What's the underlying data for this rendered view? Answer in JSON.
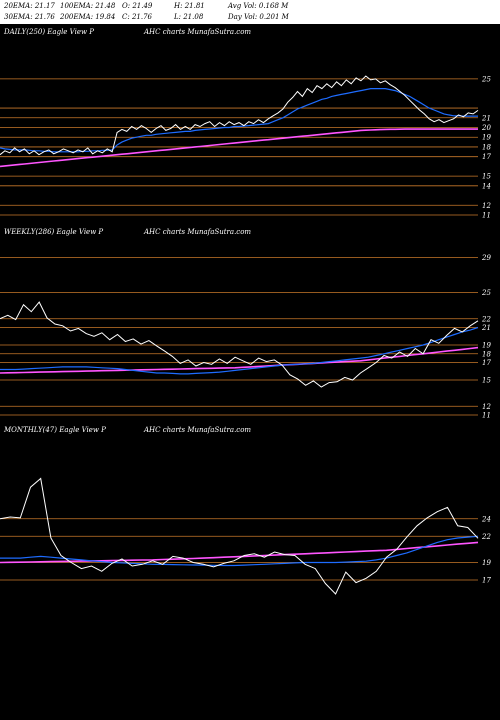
{
  "header": {
    "row1": [
      "20EMA: 21.17",
      "100EMA: 21.48",
      "O: 21.49",
      "H: 21.81",
      "Avg Vol: 0.168  M"
    ],
    "row2": [
      "30EMA: 21.76",
      "200EMA: 19.84",
      "C: 21.76",
      "L: 21.08",
      "Day Vol: 0.201  M"
    ]
  },
  "panels": [
    {
      "title": "DAILY(250) Eagle   View   P",
      "site": "AHC charts MunafaSutra.com"
    },
    {
      "title": "WEEKLY(286) Eagle   View   P",
      "site": "AHC charts MunafaSutra.com"
    },
    {
      "title": "MONTHLY(47) Eagle   View   P",
      "site": "AHC charts MunafaSutra.com"
    }
  ],
  "colors": {
    "price": "#ffffff",
    "ema_fast": "#1e6cff",
    "ema_slow": "#ff55ff",
    "level": "#c8782a",
    "emas_other": "#d0a070"
  },
  "chart_data": [
    {
      "type": "line",
      "ylim": [
        11,
        29
      ],
      "y_ticks": [
        "25",
        "21",
        "20",
        "19",
        "18",
        "17",
        "15",
        "14",
        "12",
        "11"
      ],
      "level_lines": [
        25,
        22,
        21,
        20,
        19,
        18,
        17,
        15,
        14,
        12,
        11
      ],
      "series": [
        {
          "values": [
            17.2,
            17.6,
            17.4,
            17.9,
            17.5,
            17.8,
            17.3,
            17.6,
            17.2,
            17.5,
            17.7,
            17.3,
            17.5,
            17.8,
            17.6,
            17.4,
            17.7,
            17.5,
            17.9,
            17.3,
            17.6,
            17.4,
            17.8,
            17.5,
            19.5,
            19.8,
            19.6,
            20.1,
            19.8,
            20.2,
            19.9,
            19.5,
            19.9,
            20.2,
            19.7,
            19.9,
            20.3,
            19.8,
            20.1,
            19.8,
            20.3,
            20.1,
            20.4,
            20.6,
            20.1,
            20.5,
            20.2,
            20.6,
            20.3,
            20.5,
            20.2,
            20.6,
            20.4,
            20.8,
            20.5,
            20.9,
            21.2,
            21.5,
            21.9,
            22.6,
            23.1,
            23.7,
            23.2,
            24.0,
            23.6,
            24.3,
            24.0,
            24.5,
            24.1,
            24.7,
            24.3,
            24.9,
            24.5,
            25.1,
            24.8,
            25.3,
            24.9,
            25.0,
            24.6,
            24.8,
            24.4,
            24.1,
            23.7,
            23.3,
            22.8,
            22.3,
            21.8,
            21.4,
            20.9,
            20.6,
            20.8,
            20.5,
            20.7,
            20.9,
            21.3,
            21.1,
            21.5,
            21.4,
            21.76
          ]
        },
        {
          "values": [
            17.9,
            17.8,
            17.75,
            17.7,
            17.7,
            17.7,
            17.65,
            17.6,
            17.6,
            17.55,
            17.55,
            17.5,
            17.5,
            17.5,
            17.5,
            17.5,
            17.5,
            17.55,
            17.55,
            17.6,
            17.6,
            17.65,
            17.65,
            17.7,
            18.2,
            18.5,
            18.7,
            18.9,
            19.0,
            19.1,
            19.2,
            19.2,
            19.3,
            19.35,
            19.4,
            19.45,
            19.5,
            19.55,
            19.6,
            19.6,
            19.7,
            19.75,
            19.8,
            19.85,
            19.9,
            19.95,
            20.0,
            20.0,
            20.1,
            20.1,
            20.15,
            20.2,
            20.25,
            20.3,
            20.35,
            20.4,
            20.6,
            20.8,
            21.0,
            21.3,
            21.6,
            21.9,
            22.1,
            22.3,
            22.5,
            22.7,
            22.9,
            23.0,
            23.2,
            23.3,
            23.4,
            23.5,
            23.6,
            23.7,
            23.8,
            23.9,
            24.0,
            24.0,
            24.0,
            24.0,
            23.9,
            23.8,
            23.6,
            23.4,
            23.2,
            22.9,
            22.6,
            22.3,
            22.0,
            21.8,
            21.6,
            21.4,
            21.3,
            21.2,
            21.2,
            21.17,
            21.17,
            21.17,
            21.17
          ]
        },
        {
          "values": [
            16.0,
            16.05,
            16.1,
            16.15,
            16.2,
            16.25,
            16.3,
            16.35,
            16.4,
            16.45,
            16.5,
            16.55,
            16.6,
            16.65,
            16.7,
            16.75,
            16.8,
            16.85,
            16.9,
            16.95,
            17.0,
            17.05,
            17.1,
            17.15,
            17.2,
            17.25,
            17.3,
            17.35,
            17.4,
            17.45,
            17.5,
            17.55,
            17.6,
            17.65,
            17.7,
            17.75,
            17.8,
            17.85,
            17.9,
            17.95,
            18.0,
            18.05,
            18.1,
            18.15,
            18.2,
            18.25,
            18.3,
            18.35,
            18.4,
            18.45,
            18.5,
            18.55,
            18.6,
            18.65,
            18.7,
            18.75,
            18.8,
            18.85,
            18.9,
            18.95,
            19.0,
            19.05,
            19.1,
            19.15,
            19.2,
            19.25,
            19.3,
            19.35,
            19.4,
            19.45,
            19.5,
            19.55,
            19.6,
            19.65,
            19.7,
            19.72,
            19.74,
            19.76,
            19.78,
            19.8,
            19.81,
            19.82,
            19.83,
            19.84,
            19.84,
            19.84,
            19.84,
            19.84,
            19.84,
            19.84,
            19.84,
            19.84,
            19.84,
            19.84,
            19.84,
            19.84,
            19.84,
            19.84,
            19.84
          ]
        }
      ]
    },
    {
      "type": "line",
      "ylim": [
        11,
        31
      ],
      "y_ticks": [
        "29",
        "25",
        "22",
        "21",
        "19",
        "18",
        "17",
        "15",
        "12",
        "11"
      ],
      "level_lines": [
        29,
        25,
        22,
        21,
        19,
        18,
        17,
        15,
        12,
        11
      ],
      "series": [
        {
          "values": [
            22.0,
            22.4,
            21.9,
            23.6,
            22.8,
            23.9,
            22.1,
            21.4,
            21.2,
            20.6,
            20.9,
            20.3,
            20.0,
            20.4,
            19.6,
            20.2,
            19.4,
            19.7,
            19.1,
            19.5,
            18.9,
            18.3,
            17.7,
            16.9,
            17.3,
            16.6,
            17.0,
            16.8,
            17.4,
            16.9,
            17.6,
            17.2,
            16.8,
            17.5,
            17.1,
            17.3,
            16.7,
            15.6,
            15.1,
            14.4,
            14.9,
            14.2,
            14.7,
            14.8,
            15.3,
            15.0,
            15.8,
            16.4,
            17.0,
            17.8,
            17.5,
            18.2,
            17.7,
            18.6,
            18.0,
            19.6,
            19.2,
            20.1,
            20.9,
            20.5,
            21.2,
            21.76
          ]
        },
        {
          "values": [
            16.2,
            16.2,
            16.2,
            16.25,
            16.3,
            16.35,
            16.4,
            16.45,
            16.5,
            16.5,
            16.5,
            16.5,
            16.45,
            16.4,
            16.35,
            16.3,
            16.2,
            16.1,
            16.0,
            15.9,
            15.8,
            15.8,
            15.75,
            15.7,
            15.7,
            15.75,
            15.8,
            15.85,
            15.9,
            16.0,
            16.1,
            16.2,
            16.3,
            16.4,
            16.5,
            16.6,
            16.7,
            16.75,
            16.8,
            16.85,
            16.9,
            17.0,
            17.1,
            17.2,
            17.3,
            17.4,
            17.5,
            17.6,
            17.8,
            18.0,
            18.2,
            18.4,
            18.6,
            18.8,
            19.0,
            19.3,
            19.6,
            19.9,
            20.2,
            20.5,
            20.7,
            21.0
          ]
        },
        {
          "values": [
            15.8,
            15.82,
            15.84,
            15.86,
            15.88,
            15.9,
            15.92,
            15.94,
            15.96,
            15.98,
            16.0,
            16.02,
            16.04,
            16.06,
            16.08,
            16.1,
            16.12,
            16.14,
            16.16,
            16.18,
            16.2,
            16.22,
            16.24,
            16.26,
            16.28,
            16.3,
            16.32,
            16.34,
            16.36,
            16.38,
            16.4,
            16.45,
            16.5,
            16.55,
            16.6,
            16.65,
            16.7,
            16.75,
            16.8,
            16.85,
            16.9,
            16.95,
            17.0,
            17.05,
            17.1,
            17.15,
            17.2,
            17.3,
            17.4,
            17.5,
            17.6,
            17.7,
            17.8,
            17.9,
            18.0,
            18.1,
            18.2,
            18.3,
            18.4,
            18.5,
            18.6,
            18.7
          ]
        }
      ]
    },
    {
      "type": "line",
      "ylim": [
        13,
        33
      ],
      "y_ticks": [
        "24",
        "22",
        "19",
        "17"
      ],
      "level_lines": [
        24,
        22,
        19,
        17
      ],
      "series": [
        {
          "values": [
            24.0,
            24.2,
            24.1,
            27.6,
            28.6,
            21.8,
            19.8,
            19.0,
            18.3,
            18.6,
            18.0,
            18.9,
            19.4,
            18.6,
            18.8,
            19.2,
            18.8,
            19.7,
            19.5,
            19.0,
            18.8,
            18.5,
            18.9,
            19.2,
            19.8,
            20.0,
            19.6,
            20.2,
            19.9,
            19.8,
            18.8,
            18.3,
            16.6,
            15.4,
            17.9,
            16.7,
            17.2,
            18.0,
            19.6,
            20.5,
            21.9,
            23.2,
            24.1,
            24.8,
            25.3,
            23.2,
            23.0,
            21.76
          ]
        },
        {
          "values": [
            19.5,
            19.5,
            19.5,
            19.6,
            19.7,
            19.6,
            19.5,
            19.4,
            19.3,
            19.2,
            19.1,
            19.0,
            18.95,
            18.9,
            18.85,
            18.8,
            18.78,
            18.76,
            18.74,
            18.72,
            18.7,
            18.68,
            18.66,
            18.66,
            18.7,
            18.75,
            18.8,
            18.85,
            18.9,
            18.95,
            19.0,
            19.0,
            19.0,
            19.0,
            19.05,
            19.1,
            19.15,
            19.3,
            19.5,
            19.8,
            20.1,
            20.5,
            20.9,
            21.3,
            21.6,
            21.8,
            21.9,
            22.0
          ]
        },
        {
          "values": [
            19.0,
            19.02,
            19.04,
            19.06,
            19.08,
            19.1,
            19.12,
            19.14,
            19.16,
            19.18,
            19.2,
            19.22,
            19.24,
            19.26,
            19.28,
            19.3,
            19.34,
            19.38,
            19.42,
            19.46,
            19.5,
            19.55,
            19.6,
            19.65,
            19.7,
            19.75,
            19.8,
            19.85,
            19.9,
            19.95,
            20.0,
            20.05,
            20.1,
            20.15,
            20.2,
            20.25,
            20.3,
            20.35,
            20.4,
            20.5,
            20.6,
            20.7,
            20.8,
            20.9,
            21.0,
            21.1,
            21.2,
            21.3
          ]
        }
      ]
    }
  ]
}
